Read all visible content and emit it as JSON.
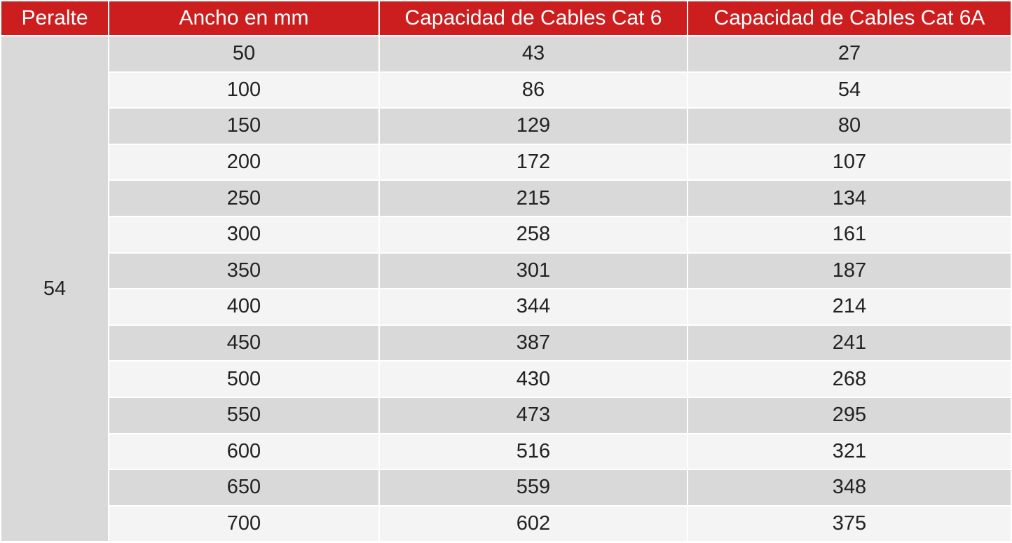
{
  "table": {
    "headers": {
      "peralte": "Peralte",
      "ancho": "Ancho en mm",
      "cat6": "Capacidad de Cables Cat 6",
      "cat6a": "Capacidad de Cables Cat 6A"
    },
    "peralte_value": "54",
    "rows": [
      {
        "ancho": "50",
        "cat6": "43",
        "cat6a": "27"
      },
      {
        "ancho": "100",
        "cat6": "86",
        "cat6a": "54"
      },
      {
        "ancho": "150",
        "cat6": "129",
        "cat6a": "80"
      },
      {
        "ancho": "200",
        "cat6": "172",
        "cat6a": "107"
      },
      {
        "ancho": "250",
        "cat6": "215",
        "cat6a": "134"
      },
      {
        "ancho": "300",
        "cat6": "258",
        "cat6a": "161"
      },
      {
        "ancho": "350",
        "cat6": "301",
        "cat6a": "187"
      },
      {
        "ancho": "400",
        "cat6": "344",
        "cat6a": "214"
      },
      {
        "ancho": "450",
        "cat6": "387",
        "cat6a": "241"
      },
      {
        "ancho": "500",
        "cat6": "430",
        "cat6a": "268"
      },
      {
        "ancho": "550",
        "cat6": "473",
        "cat6a": "295"
      },
      {
        "ancho": "600",
        "cat6": "516",
        "cat6a": "321"
      },
      {
        "ancho": "650",
        "cat6": "559",
        "cat6a": "348"
      },
      {
        "ancho": "700",
        "cat6": "602",
        "cat6a": "375"
      }
    ],
    "colors": {
      "header_bg": "#cc1e1e",
      "header_text": "#ffffff",
      "row_dark": "#d9d9d9",
      "row_light": "#f4f4f4"
    }
  }
}
